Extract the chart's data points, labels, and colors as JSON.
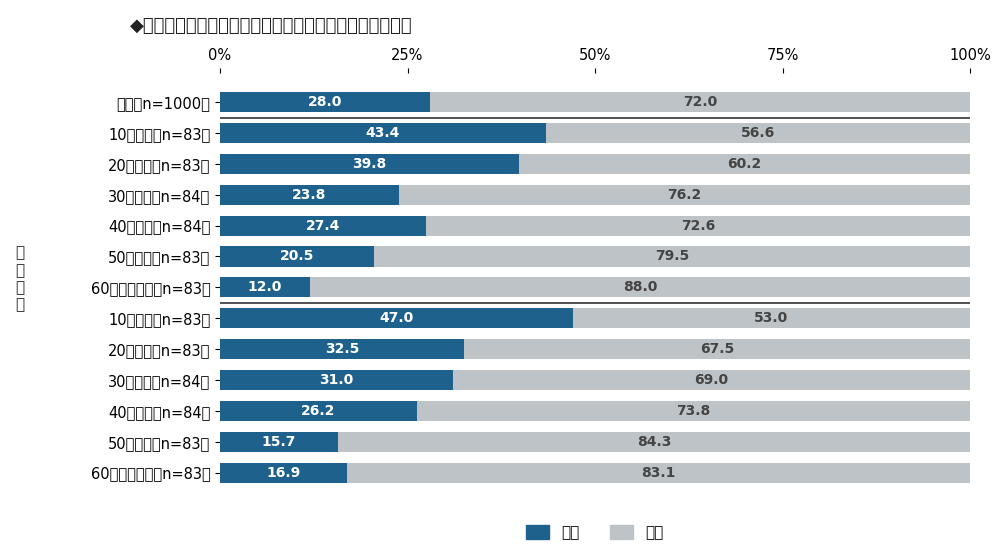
{
  "title": "◆自身が熱中症になったことがあるか　［単一回答形式］",
  "categories": [
    "全体【n=1000】",
    "10代男性【n=83】",
    "20代男性【n=83】",
    "30代男性【n=84】",
    "40代男性【n=84】",
    "50代男性【n=83】",
    "60代以上男性【n=83】",
    "10代女性【n=83】",
    "20代女性【n=83】",
    "30代女性【n=84】",
    "40代女性【n=84】",
    "50代女性【n=83】",
    "60代以上女性【n=83】"
  ],
  "yes_values": [
    28.0,
    43.4,
    39.8,
    23.8,
    27.4,
    20.5,
    12.0,
    47.0,
    32.5,
    31.0,
    26.2,
    15.7,
    16.9
  ],
  "no_values": [
    72.0,
    56.6,
    60.2,
    76.2,
    72.6,
    79.5,
    88.0,
    53.0,
    67.5,
    69.0,
    73.8,
    84.3,
    83.1
  ],
  "yes_color": "#1F618D",
  "no_color": "#BDC3C7",
  "bar_height": 0.65,
  "title_fontsize": 13,
  "tick_fontsize": 10.5,
  "label_fontsize": 10,
  "axis_label_color": "#333333",
  "background_color": "#FFFFFF",
  "left_label": "性\n年\n代\n別",
  "legend_yes": "ある",
  "legend_no": "ない",
  "x_ticks": [
    0,
    25,
    50,
    75,
    100
  ],
  "x_tick_labels": [
    "0%",
    "25%",
    "50%",
    "75%",
    "100%"
  ],
  "separator_row": 6
}
